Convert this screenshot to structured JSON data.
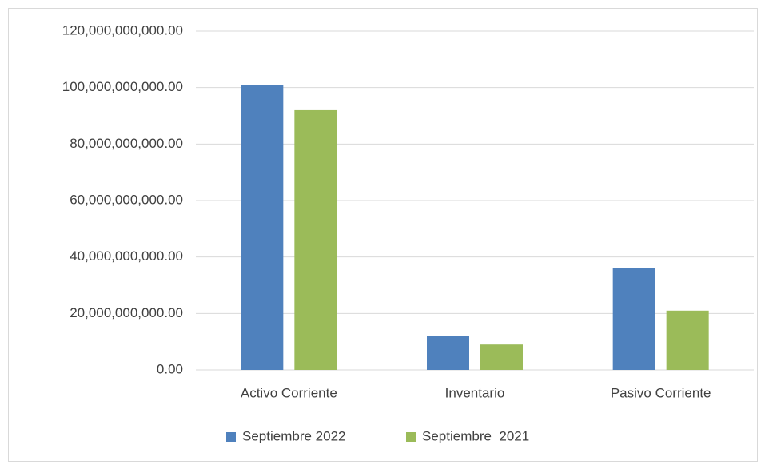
{
  "chart_data": {
    "type": "bar",
    "categories": [
      "Activo Corriente",
      "Inventario",
      "Pasivo Corriente"
    ],
    "series": [
      {
        "name": "Septiembre 2022",
        "color": "#4f81bd",
        "values": [
          101000000000,
          12000000000,
          36000000000
        ]
      },
      {
        "name": "Septiembre  2021",
        "color": "#9bbb59",
        "values": [
          92000000000,
          9000000000,
          21000000000
        ]
      }
    ],
    "ylim": [
      0,
      120000000000
    ],
    "yticks": [
      {
        "value": 0,
        "label": "0.00"
      },
      {
        "value": 20000000000,
        "label": "20,000,000,000.00"
      },
      {
        "value": 40000000000,
        "label": "40,000,000,000.00"
      },
      {
        "value": 60000000000,
        "label": "60,000,000,000.00"
      },
      {
        "value": 80000000000,
        "label": "80,000,000,000.00"
      },
      {
        "value": 100000000000,
        "label": "100,000,000,000.00"
      },
      {
        "value": 120000000000,
        "label": "120,000,000,000.00"
      }
    ],
    "grid": true,
    "legend": "bottom"
  }
}
